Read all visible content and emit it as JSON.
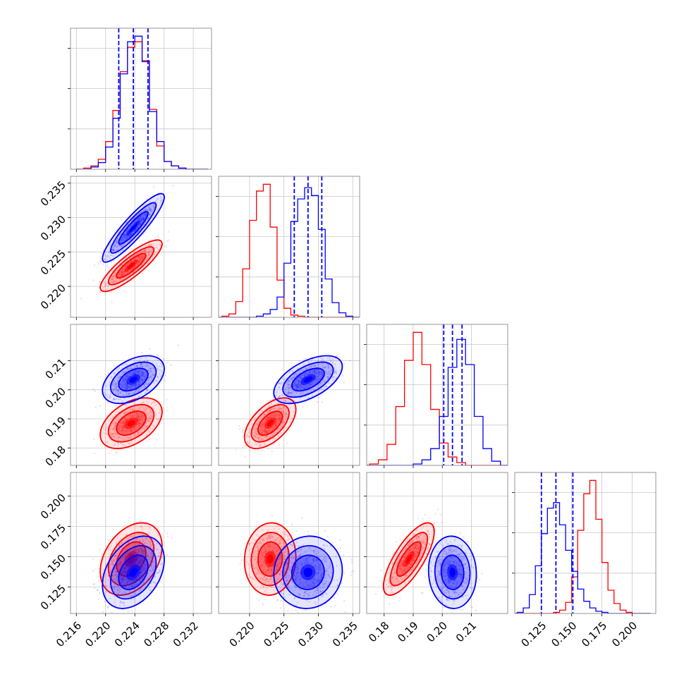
{
  "chart_data": {
    "type": "scatter",
    "title": "",
    "series": [
      {
        "color": "#ff0000",
        "means": [
          0.2235,
          0.223,
          0.1885,
          0.148
        ],
        "sds": [
          0.0017,
          0.0015,
          0.0035,
          0.012
        ]
      },
      {
        "color": "#0000ff",
        "means": [
          0.2238,
          0.2285,
          0.2035,
          0.137
        ],
        "sds": [
          0.0017,
          0.002,
          0.0033,
          0.012
        ]
      }
    ],
    "grid": true,
    "quantile_lines": {
      "color": "#0000ff",
      "per_parameter": [
        [
          0.2218,
          0.2238,
          0.2258
        ],
        [
          0.2265,
          0.2285,
          0.2305
        ],
        [
          0.2005,
          0.2035,
          0.2068
        ],
        [
          0.125,
          0.137,
          0.151
        ]
      ]
    },
    "histograms": [
      {
        "bins": [
          0.216,
          0.234
        ],
        "red": [
          0,
          1,
          3,
          9,
          25,
          53,
          88,
          110,
          115,
          98,
          54,
          21,
          7,
          3,
          1,
          0,
          0,
          0
        ],
        "blue": [
          0,
          0,
          2,
          6,
          20,
          46,
          86,
          115,
          120,
          97,
          52,
          25,
          7,
          3,
          1,
          0,
          0,
          0
        ]
      },
      {
        "bins": [
          0.214,
          0.237
        ],
        "red": [
          0,
          0,
          1,
          3,
          14,
          43,
          86,
          112,
          118,
          80,
          33,
          8,
          2,
          1,
          0,
          0,
          0,
          0,
          0,
          0,
          0,
          0,
          0
        ],
        "blue": [
          0,
          0,
          0,
          0,
          0,
          0,
          0,
          1,
          3,
          7,
          18,
          48,
          85,
          105,
          115,
          108,
          78,
          34,
          13,
          4,
          1,
          0,
          0
        ]
      },
      {
        "bins": [
          0.172,
          0.223
        ],
        "red": [
          0,
          1,
          4,
          15,
          42,
          75,
          95,
          72,
          40,
          16,
          6,
          2,
          0,
          0,
          0,
          0,
          0
        ],
        "blue": [
          0,
          0,
          0,
          0,
          0,
          0,
          1,
          4,
          12,
          35,
          70,
          90,
          72,
          35,
          12,
          3,
          0
        ]
      },
      {
        "bins": [
          0.1,
          0.215
        ],
        "red": [
          0,
          0,
          0,
          0,
          0,
          0,
          0,
          1,
          3,
          10,
          33,
          75,
          108,
          120,
          85,
          46,
          21,
          9,
          3,
          1,
          0,
          0,
          0
        ],
        "blue": [
          0,
          1,
          5,
          17,
          43,
          72,
          95,
          100,
          80,
          57,
          38,
          22,
          11,
          5,
          2,
          1,
          0,
          0,
          0,
          0,
          0,
          0,
          0
        ]
      }
    ],
    "correlations": {
      "red": {
        "1-0": 0.85,
        "2-0": 0.45,
        "2-1": 0.55,
        "3-0": 0.35,
        "3-1": 0.05,
        "3-2": 0.75
      },
      "blue": {
        "1-0": 0.9,
        "2-0": 0.45,
        "2-1": 0.55,
        "3-0": 0.35,
        "3-1": 0.05,
        "3-2": -0.05
      }
    },
    "params": [
      {
        "range": [
          0.2152,
          0.2345
        ],
        "ticks": [
          "0.216",
          "0.220",
          "0.224",
          "0.228",
          "0.232"
        ]
      },
      {
        "range": [
          0.2155,
          0.236
        ],
        "ticks": [
          "0.220",
          "0.225",
          "0.230",
          "0.235"
        ]
      },
      {
        "range": [
          0.174,
          0.2225
        ],
        "ticks": [
          "0.18",
          "0.19",
          "0.20",
          "0.21"
        ]
      },
      {
        "range": [
          0.103,
          0.2195
        ],
        "ticks": [
          "0.125",
          "0.150",
          "0.175",
          "0.200"
        ]
      }
    ],
    "row_ticks": [
      [],
      [
        "0.220",
        "0.225",
        "0.230",
        "0.235"
      ],
      [
        "0.18",
        "0.19",
        "0.20",
        "0.21"
      ],
      [
        "0.125",
        "0.150",
        "0.175",
        "0.200"
      ]
    ]
  }
}
